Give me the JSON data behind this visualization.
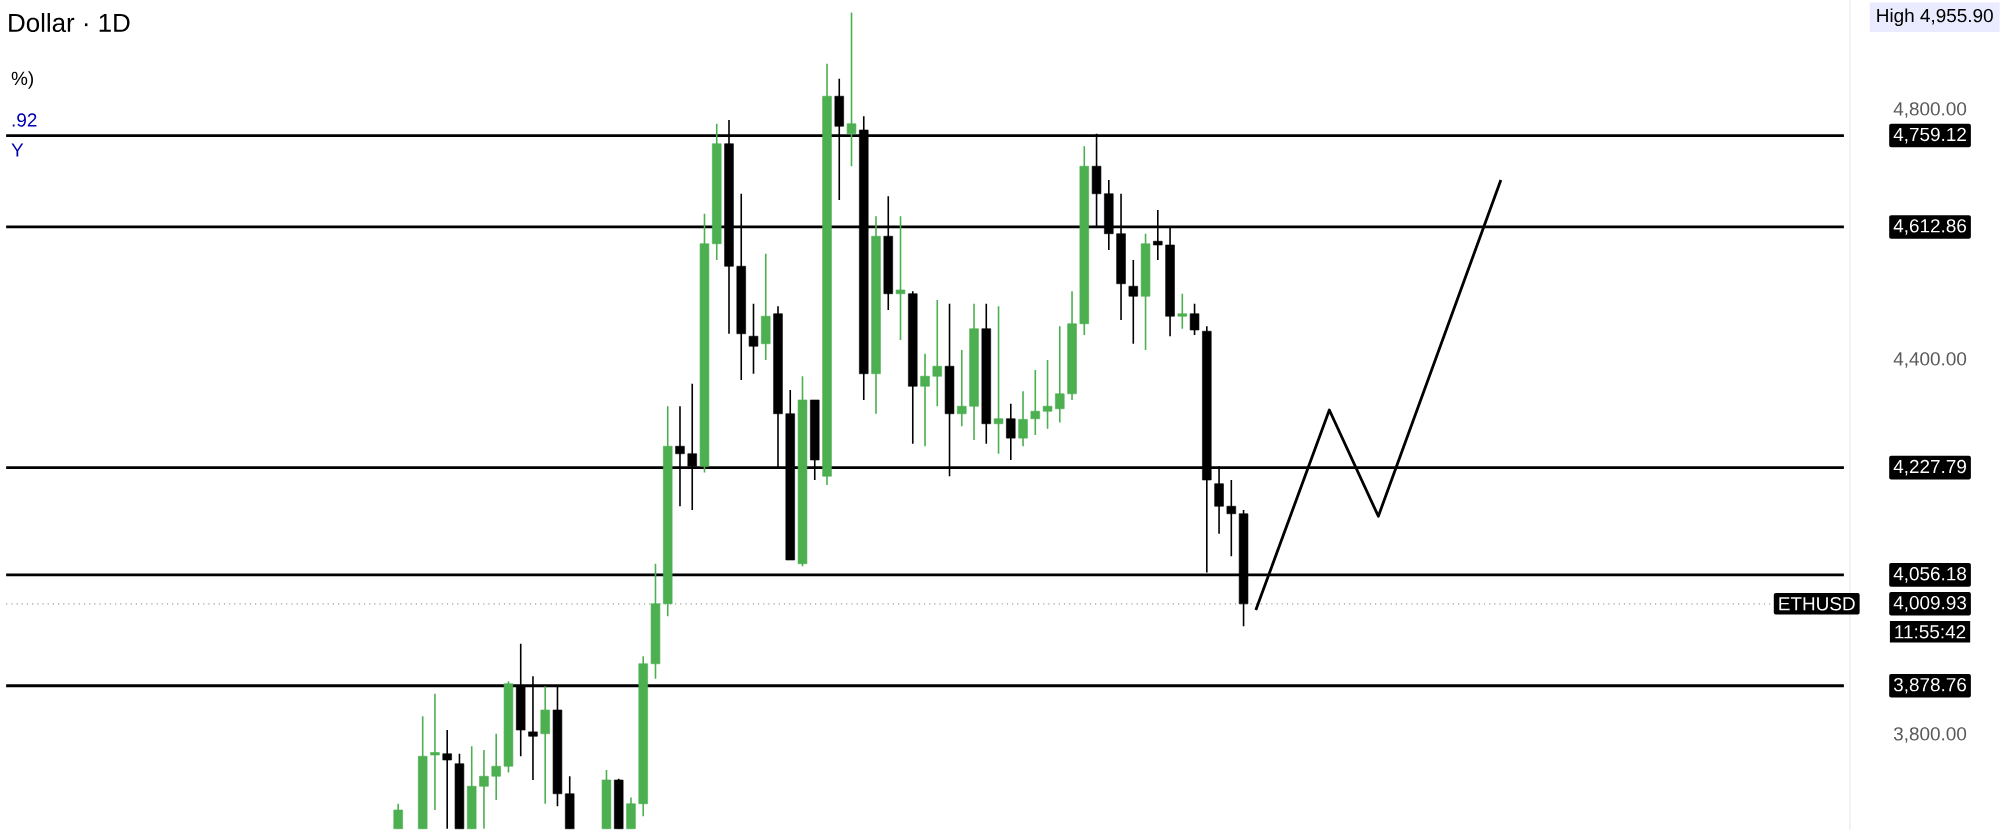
{
  "chart_data": {
    "type": "candlestick",
    "title": "Dollar · 1D",
    "categories": [
      null,
      null,
      null,
      null,
      null,
      null,
      null,
      null,
      null,
      null,
      null,
      null,
      null,
      null,
      null,
      null,
      null,
      null,
      null,
      null,
      null,
      null,
      null,
      null,
      null,
      null,
      null,
      null,
      null,
      null,
      null,
      null,
      null,
      null,
      null,
      null,
      null,
      null,
      null,
      null,
      null,
      null,
      null,
      null,
      null,
      null,
      null,
      null,
      null,
      null,
      null,
      null,
      null,
      null,
      null,
      null,
      null,
      null,
      null,
      null,
      null,
      null,
      null,
      null,
      null,
      null,
      null,
      null,
      null,
      null,
      null,
      null,
      null,
      null,
      null,
      null,
      null,
      null,
      null,
      null,
      null,
      null,
      null,
      null,
      null,
      null,
      null,
      null,
      null,
      null,
      null,
      null,
      null,
      null,
      null,
      null,
      null,
      null,
      null,
      null,
      null,
      null,
      null,
      null,
      null,
      null,
      null,
      null,
      null,
      null,
      null,
      null,
      null,
      null,
      null,
      null,
      null,
      null,
      null,
      null,
      null,
      null,
      null,
      null,
      null,
      null,
      null,
      null,
      null,
      null,
      null,
      null,
      null,
      null,
      null,
      null,
      null,
      null,
      null,
      null,
      null,
      null,
      null,
      null,
      null,
      null,
      null,
      null,
      null,
      null,
      null
    ],
    "ohlc": [
      null,
      null,
      null,
      null,
      null,
      null,
      null,
      null,
      null,
      null,
      null,
      null,
      null,
      null,
      null,
      null,
      null,
      null,
      null,
      null,
      null,
      null,
      null,
      null,
      null,
      null,
      null,
      null,
      null,
      null,
      null,
      null,
      [
        3650,
        3690,
        3650,
        3680
      ],
      null,
      [
        3650,
        3830,
        3650,
        3766
      ],
      [
        3768,
        3866,
        3680,
        3772
      ],
      [
        3770,
        3808,
        3650,
        3760
      ],
      [
        3754,
        3770,
        3650,
        3650
      ],
      [
        3650,
        3782,
        3650,
        3718
      ],
      [
        3718,
        3776,
        3650,
        3734
      ],
      [
        3734,
        3802,
        3696,
        3750
      ],
      [
        3750,
        3886,
        3740,
        3882
      ],
      [
        3878,
        3946,
        3766,
        3808
      ],
      [
        3805,
        3894,
        3728,
        3798
      ],
      [
        3802,
        3878,
        3690,
        3840
      ],
      [
        3840,
        3878,
        3686,
        3706
      ],
      [
        3706,
        3734,
        3650,
        3650
      ],
      null,
      null,
      [
        3650,
        3744,
        3650,
        3728
      ],
      [
        3728,
        3730,
        3650,
        3650
      ],
      [
        3650,
        3700,
        3650,
        3690
      ],
      [
        3690,
        3926,
        3670,
        3914
      ],
      [
        3914,
        4074,
        3890,
        4010
      ],
      [
        4010,
        4326,
        3990,
        4262
      ],
      [
        4262,
        4326,
        4166,
        4250
      ],
      [
        4250,
        4362,
        4160,
        4230
      ],
      [
        4230,
        4634,
        4220,
        4586
      ],
      [
        4586,
        4778,
        4560,
        4746
      ],
      [
        4746,
        4784,
        4442,
        4550
      ],
      [
        4550,
        4666,
        4368,
        4442
      ],
      [
        4438,
        4490,
        4378,
        4422
      ],
      [
        4426,
        4570,
        4400,
        4470
      ],
      [
        4474,
        4486,
        4226,
        4314
      ],
      [
        4314,
        4352,
        4080,
        4080
      ],
      [
        4074,
        4374,
        4070,
        4336
      ],
      [
        4336,
        4336,
        4208,
        4240
      ],
      [
        4214,
        4874,
        4200,
        4822
      ],
      [
        4822,
        4850,
        4656,
        4774
      ],
      [
        4762,
        4955.9,
        4710,
        4778
      ],
      [
        4768,
        4790,
        4336,
        4378
      ],
      [
        4378,
        4630,
        4314,
        4598
      ],
      [
        4598,
        4662,
        4480,
        4506
      ],
      [
        4506,
        4630,
        4432,
        4512
      ],
      [
        4506,
        4510,
        4266,
        4358
      ],
      [
        4358,
        4410,
        4262,
        4374
      ],
      [
        4374,
        4496,
        4326,
        4390
      ],
      [
        4390,
        4490,
        4214,
        4314
      ],
      [
        4314,
        4416,
        4294,
        4326
      ],
      [
        4326,
        4490,
        4272,
        4450
      ],
      [
        4450,
        4490,
        4266,
        4298
      ],
      [
        4298,
        4486,
        4250,
        4306
      ],
      [
        4306,
        4330,
        4240,
        4275
      ],
      [
        4275,
        4350,
        4262,
        4305
      ],
      [
        4306,
        4384,
        4280,
        4318
      ],
      [
        4318,
        4400,
        4290,
        4326
      ],
      [
        4322,
        4454,
        4300,
        4346
      ],
      [
        4346,
        4510,
        4336,
        4458
      ],
      [
        4458,
        4742,
        4440,
        4710
      ],
      [
        4710,
        4762,
        4614,
        4666
      ],
      [
        4666,
        4688,
        4576,
        4602
      ],
      [
        4602,
        4666,
        4464,
        4522
      ],
      [
        4518,
        4560,
        4426,
        4502
      ],
      [
        4502,
        4602,
        4416,
        4586
      ],
      [
        4590,
        4640,
        4560,
        4584
      ],
      [
        4584,
        4614,
        4438,
        4470
      ],
      [
        4470,
        4506,
        4450,
        4474
      ],
      [
        4474,
        4490,
        4440,
        4448
      ],
      [
        4446,
        4454,
        4060,
        4208
      ],
      [
        4202,
        4230,
        4122,
        4166
      ],
      [
        4166,
        4208,
        4086,
        4154
      ],
      [
        4154,
        4160,
        3974,
        4009.93
      ],
      null,
      null,
      null,
      null,
      null,
      null,
      null,
      null,
      null,
      null,
      null,
      null,
      null,
      null,
      null,
      null,
      null,
      null,
      null,
      null,
      null,
      null,
      null,
      null,
      null,
      null,
      null,
      null,
      null,
      null,
      null,
      null,
      null,
      null,
      null,
      null,
      null,
      null,
      null,
      null,
      null,
      null,
      null,
      null,
      null,
      null,
      null,
      null,
      null
    ],
    "colors": [
      null,
      null,
      null,
      null,
      null,
      null,
      null,
      null,
      null,
      null,
      null,
      null,
      null,
      null,
      null,
      null,
      null,
      null,
      null,
      null,
      null,
      null,
      null,
      null,
      null,
      null,
      null,
      null,
      null,
      null,
      null,
      null,
      "#4caf50",
      null,
      "#4caf50",
      "#4caf50",
      "#000000",
      "#000000",
      "#4caf50",
      "#4caf50",
      "#4caf50",
      "#4caf50",
      "#000000",
      "#000000",
      "#4caf50",
      "#000000",
      "#000000",
      null,
      null,
      "#4caf50",
      "#000000",
      "#4caf50",
      "#4caf50",
      "#4caf50",
      "#4caf50",
      "#000000",
      "#000000",
      "#4caf50",
      "#4caf50",
      "#000000",
      "#000000",
      "#000000",
      "#4caf50",
      "#000000",
      "#000000",
      "#4caf50",
      "#000000",
      "#4caf50",
      "#000000",
      "#4caf50",
      "#000000",
      "#4caf50",
      "#000000",
      "#4caf50",
      "#000000",
      "#4caf50",
      "#4caf50",
      "#000000",
      "#4caf50",
      "#4caf50",
      "#000000",
      "#4caf50",
      "#000000",
      "#4caf50",
      "#4caf50",
      "#4caf50",
      "#4caf50",
      "#4caf50",
      "#4caf50",
      "#000000",
      "#000000",
      "#000000",
      "#000000",
      "#4caf50",
      "#000000",
      "#000000",
      "#4caf50",
      "#000000",
      "#000000",
      "#000000",
      "#000000",
      "#000000",
      null,
      null,
      null,
      null,
      null,
      null,
      null,
      null,
      null,
      null,
      null,
      null,
      null,
      null,
      null,
      null,
      null,
      null,
      null,
      null,
      null,
      null,
      null,
      null,
      null,
      null,
      null,
      null,
      null,
      null,
      null,
      null,
      null,
      null,
      null,
      null,
      null,
      null,
      null,
      null,
      null,
      null,
      null,
      null,
      null,
      null,
      null,
      null,
      null
    ],
    "series": [
      {
        "type": "line",
        "color": "#000000",
        "values": [
          null,
          null,
          null,
          null,
          null,
          null,
          null,
          null,
          null,
          null,
          null,
          null,
          null,
          null,
          null,
          null,
          null,
          null,
          null,
          null,
          null,
          null,
          null,
          null,
          null,
          null,
          null,
          null,
          null,
          null,
          null,
          null,
          null,
          null,
          null,
          null,
          null,
          null,
          null,
          null,
          null,
          null,
          null,
          null,
          null,
          null,
          null,
          null,
          null,
          null,
          null,
          null,
          null,
          null,
          null,
          null,
          null,
          null,
          null,
          null,
          null,
          null,
          null,
          null,
          null,
          null,
          null,
          null,
          null,
          null,
          null,
          null,
          null,
          null,
          null,
          null,
          null,
          null,
          null,
          null,
          null,
          null,
          null,
          null,
          null,
          null,
          null,
          null,
          null,
          null,
          null,
          null,
          null,
          null,
          null,
          null,
          null,
          null,
          null,
          null,
          null,
          null,
          4000,
          null,
          null,
          null,
          null,
          null,
          4320,
          null,
          null,
          null,
          4150,
          null,
          null,
          null,
          null,
          null,
          null,
          null,
          null,
          null,
          4688,
          null,
          null,
          null,
          null,
          null,
          null,
          null,
          null,
          null,
          null,
          null,
          null,
          null,
          null,
          null,
          null,
          null,
          null,
          null,
          null,
          null,
          null,
          null,
          null,
          null,
          null,
          null,
          null
        ]
      }
    ],
    "ylim": [
      3648,
      4976
    ],
    "yticks": [
      {
        "value": 3800,
        "label": "3,800.00"
      },
      {
        "value": 4400,
        "label": "4,400.00"
      },
      {
        "value": 4800,
        "label": "4,800.00"
      }
    ],
    "tick_labels": "y",
    "ref_lines": [
      {
        "axis": "y",
        "value": 4759.12,
        "label": "4,759.12",
        "color": "#000000"
      },
      {
        "axis": "y",
        "value": 4612.86,
        "label": "4,612.86",
        "color": "#000000"
      },
      {
        "axis": "y",
        "value": 4227.79,
        "label": "4,227.79",
        "color": "#000000"
      },
      {
        "axis": "y",
        "value": 4056.18,
        "label": "4,056.18",
        "color": "#000000"
      },
      {
        "axis": "y",
        "value": 4009.93,
        "label": "4,009.93",
        "color": "#9e9e9e",
        "line_style": "dotted"
      },
      {
        "axis": "y",
        "value": 3878.76,
        "label": "3,878.76",
        "color": "#000000"
      }
    ],
    "annotations": [
      "High 4,955.90",
      "ETHUSD",
      "11:55:42",
      "%)",
      ".92",
      "Y"
    ]
  }
}
